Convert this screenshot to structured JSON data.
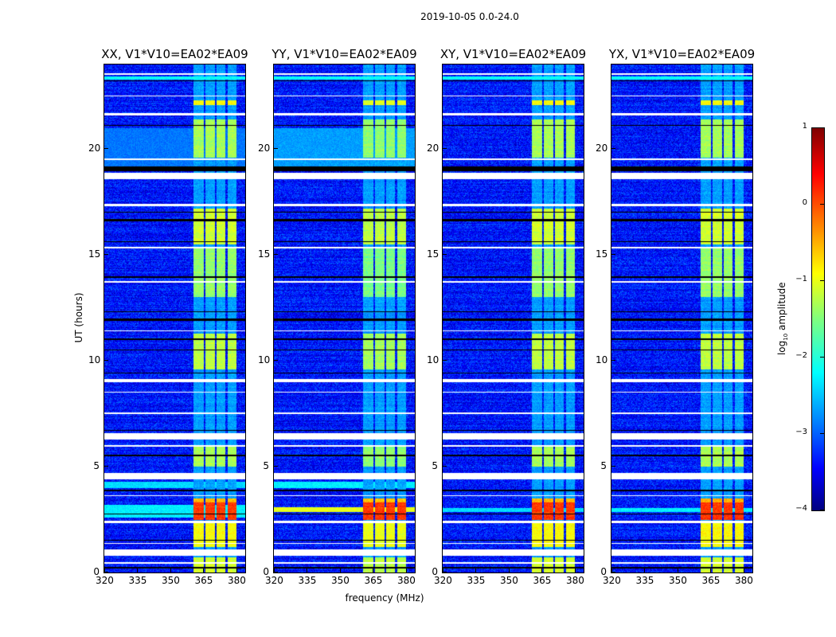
{
  "chart_data": {
    "type": "heatmap",
    "title": "2019-10-05 0.0-24.0",
    "xlabel": "frequency (MHz)",
    "ylabel": "UT (hours)",
    "xlim": [
      320,
      384
    ],
    "ylim": [
      0,
      24
    ],
    "xticks": [
      "320",
      "335",
      "350",
      "365",
      "380"
    ],
    "xtick_values": [
      320,
      335,
      350,
      365,
      380
    ],
    "yticks": [
      "0",
      "5",
      "10",
      "15",
      "20"
    ],
    "ytick_values": [
      0,
      5,
      10,
      15,
      20
    ],
    "panels": [
      {
        "title": "XX, V1*V10=EA02*EA09",
        "scale": 1.0,
        "wideband_ut": [
          [
            2.6,
            3.2,
            -2.2
          ],
          [
            4.0,
            4.3,
            -2.3
          ],
          [
            19.2,
            21.0,
            -2.8
          ]
        ]
      },
      {
        "title": "YY, V1*V10=EA02*EA09",
        "scale": 1.1,
        "wideband_ut": [
          [
            2.85,
            3.1,
            -1.0
          ],
          [
            4.0,
            4.3,
            -2.2
          ],
          [
            19.2,
            21.0,
            -2.6
          ]
        ]
      },
      {
        "title": "XY, V1*V10=EA02*EA09",
        "scale": 1.0,
        "wideband_ut": [
          [
            2.85,
            3.05,
            -2.3
          ]
        ]
      },
      {
        "title": "YX, V1*V10=EA02*EA09",
        "scale": 1.0,
        "wideband_ut": [
          [
            2.85,
            3.05,
            -2.2
          ]
        ]
      }
    ],
    "background_level": -3.3,
    "bright_channels": {
      "start": 360.5,
      "end": 380,
      "gaps": [
        365.5,
        370.5,
        375.5
      ]
    },
    "bright_episodes": [
      {
        "ut": [
          0.0,
          0.7
        ],
        "level": -1.1
      },
      {
        "ut": [
          1.2,
          2.4
        ],
        "level": -0.9
      },
      {
        "ut": [
          2.5,
          3.3
        ],
        "level": 0.1
      },
      {
        "ut": [
          3.3,
          3.5
        ],
        "level": -0.5
      },
      {
        "ut": [
          5.0,
          6.0
        ],
        "level": -1.3
      },
      {
        "ut": [
          9.6,
          11.3
        ],
        "level": -1.2
      },
      {
        "ut": [
          13.0,
          15.3
        ],
        "level": -1.4
      },
      {
        "ut": [
          15.5,
          17.2
        ],
        "level": -1.1
      },
      {
        "ut": [
          19.6,
          21.4
        ],
        "level": -1.3
      },
      {
        "ut": [
          22.1,
          22.3
        ],
        "level": -0.9
      }
    ],
    "quiet_level_in_band": -2.6,
    "flagged_ut": [
      [
        0.4,
        0.5
      ],
      [
        0.8,
        1.1
      ],
      [
        1.35,
        1.4
      ],
      [
        2.35,
        2.45
      ],
      [
        3.6,
        3.65
      ],
      [
        4.4,
        4.7
      ],
      [
        5.95,
        6.0
      ],
      [
        6.3,
        6.6
      ],
      [
        7.5,
        7.55
      ],
      [
        8.5,
        8.55
      ],
      [
        9.0,
        9.15
      ],
      [
        11.4,
        11.45
      ],
      [
        13.7,
        13.75
      ],
      [
        15.3,
        15.4
      ],
      [
        17.3,
        17.4
      ],
      [
        18.6,
        18.9
      ],
      [
        19.5,
        19.55
      ],
      [
        21.6,
        21.7
      ],
      [
        22.5,
        22.55
      ],
      [
        23.5,
        23.6
      ]
    ],
    "dark_ut": [
      [
        0.2,
        0.25
      ],
      [
        1.5,
        1.55
      ],
      [
        2.75,
        2.8
      ],
      [
        3.85,
        3.9
      ],
      [
        5.5,
        5.55
      ],
      [
        6.7,
        6.75
      ],
      [
        9.4,
        9.45
      ],
      [
        10.5,
        10.55
      ],
      [
        11.0,
        11.05
      ],
      [
        11.9,
        12.0
      ],
      [
        12.3,
        12.35
      ],
      [
        13.9,
        14.0
      ],
      [
        15.6,
        15.65
      ],
      [
        16.6,
        16.7
      ],
      [
        17.0,
        17.05
      ],
      [
        18.95,
        19.2
      ],
      [
        21.1,
        21.15
      ],
      [
        23.2,
        23.25
      ]
    ],
    "colorbar": {
      "label_prefix": "log",
      "label_sub": "10",
      "label_suffix": " amplitude",
      "range": [
        -4,
        1
      ],
      "ticks": [
        "−4",
        "−3",
        "−2",
        "−1",
        "0",
        "1"
      ],
      "tick_values": [
        -4,
        -3,
        -2,
        -1,
        0,
        1
      ],
      "colormap": "jet"
    }
  }
}
